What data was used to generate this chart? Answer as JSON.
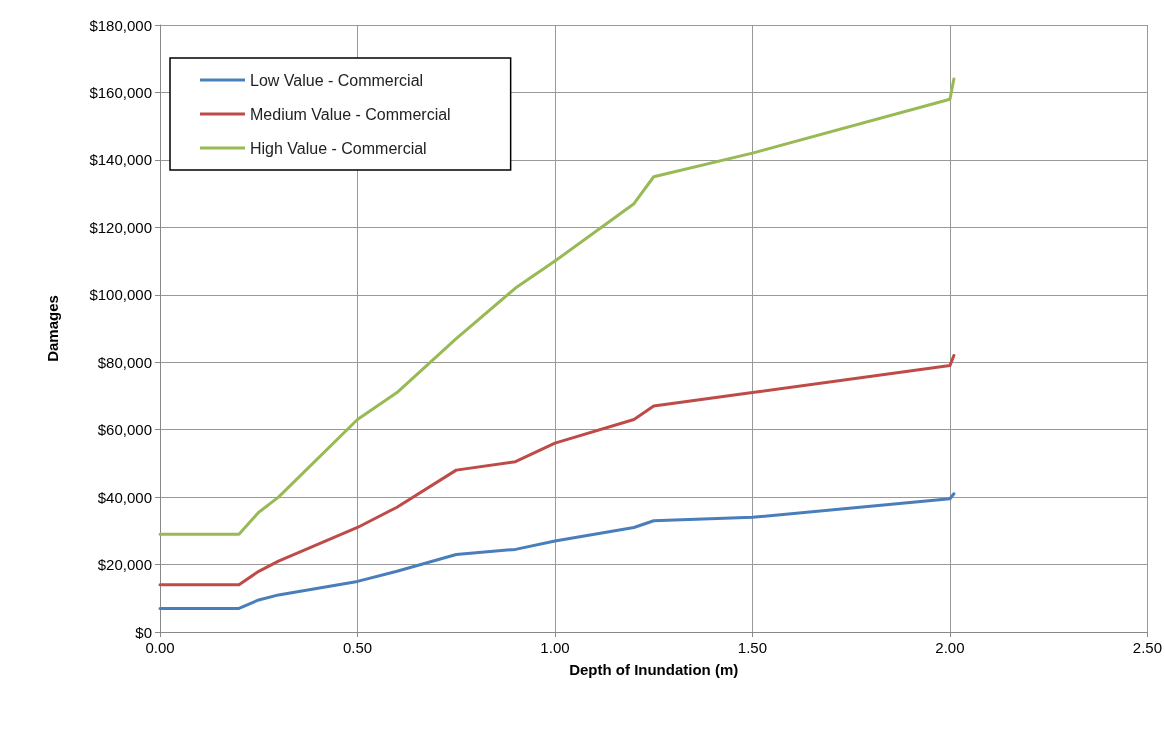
{
  "chart_data": {
    "type": "line",
    "xlabel": "Depth of Inundation (m)",
    "ylabel": "Damages",
    "x": [
      0,
      0.2,
      0.25,
      0.3,
      0.5,
      0.6,
      0.75,
      0.9,
      1.0,
      1.2,
      1.25,
      1.5,
      2.0,
      2.01
    ],
    "series": [
      {
        "name": "Low Value - Commercial",
        "color": "#4a7ebb",
        "values": [
          7000,
          7000,
          9500,
          11000,
          15000,
          18000,
          23000,
          24500,
          27000,
          31000,
          33000,
          34000,
          39500,
          41000
        ]
      },
      {
        "name": "Medium Value - Commercial",
        "color": "#be4b48",
        "values": [
          14000,
          14000,
          18000,
          21000,
          31000,
          37000,
          48000,
          50500,
          56000,
          63000,
          67000,
          71000,
          79000,
          82000
        ]
      },
      {
        "name": "High Value - Commercial",
        "color": "#98b954",
        "values": [
          29000,
          29000,
          35500,
          40000,
          63000,
          71000,
          87000,
          102000,
          110000,
          127000,
          135000,
          142000,
          158000,
          164000
        ]
      }
    ],
    "xlim": [
      0,
      2.5
    ],
    "xticks": [
      {
        "value": 0,
        "label": "0.00"
      },
      {
        "value": 0.5,
        "label": "0.50"
      },
      {
        "value": 1,
        "label": "1.00"
      },
      {
        "value": 1.5,
        "label": "1.50"
      },
      {
        "value": 2,
        "label": "2.00"
      },
      {
        "value": 2.5,
        "label": "2.50"
      }
    ],
    "ylim": [
      0,
      180000
    ],
    "yticks": [
      {
        "value": 0,
        "label": "$0"
      },
      {
        "value": 20000,
        "label": "$20,000"
      },
      {
        "value": 40000,
        "label": "$40,000"
      },
      {
        "value": 60000,
        "label": "$60,000"
      },
      {
        "value": 80000,
        "label": "$80,000"
      },
      {
        "value": 100000,
        "label": "$100,000"
      },
      {
        "value": 120000,
        "label": "$120,000"
      },
      {
        "value": 140000,
        "label": "$140,000"
      },
      {
        "value": 160000,
        "label": "$160,000"
      },
      {
        "value": 180000,
        "label": "$180,000"
      }
    ],
    "grid": true,
    "legend": "top left",
    "marker": "none",
    "line_style": "solid"
  }
}
